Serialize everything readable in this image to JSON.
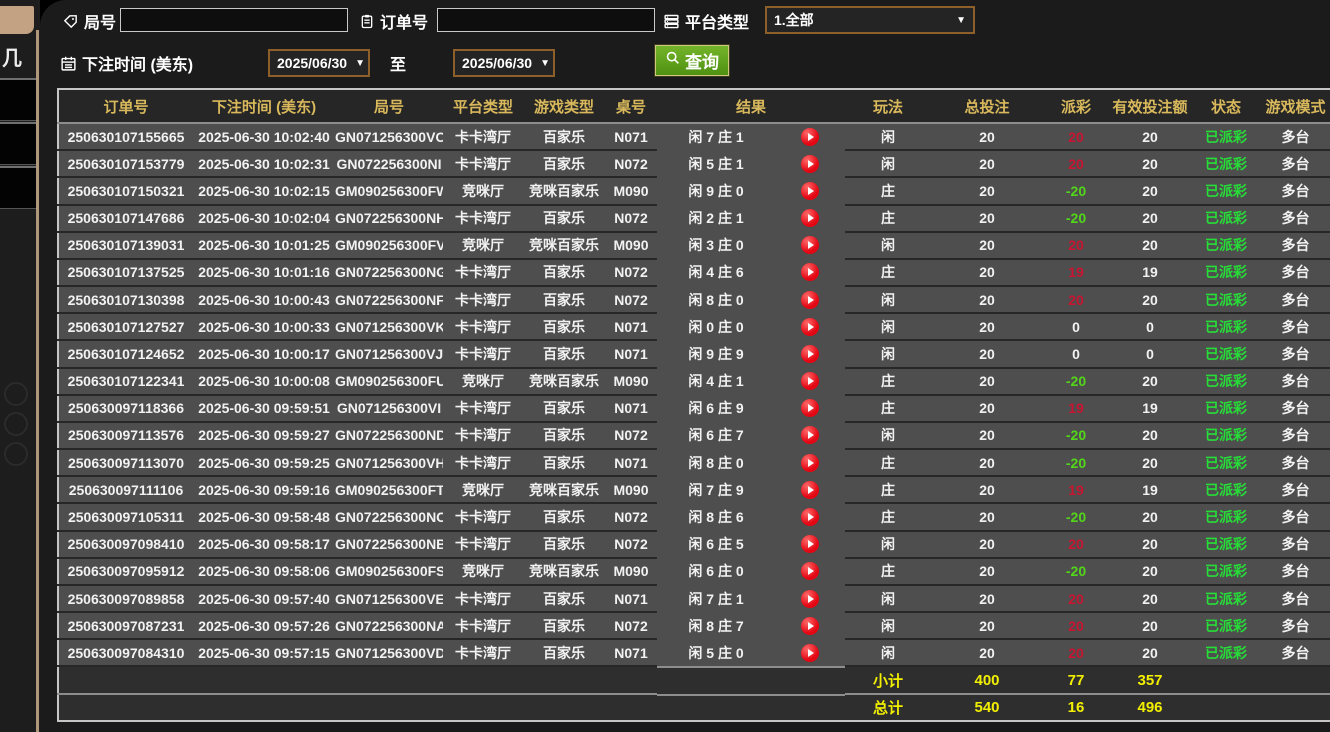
{
  "background": {
    "glyph": "几"
  },
  "filters": {
    "round_label": "局号",
    "order_label": "订单号",
    "platform_label": "平台类型",
    "platform_value": "1.全部",
    "bet_time_label": "下注时间 (美东)",
    "date_from": "2025/06/30",
    "to_label": "至",
    "date_to": "2025/06/30",
    "query_label": "查询",
    "round_input_value": "",
    "order_input_value": ""
  },
  "icons": {
    "tag-icon": "tag",
    "clipboard-icon": "clipboard",
    "platform-icon": "server-stack",
    "calendar-icon": "calendar",
    "search-icon": "magnifier",
    "dropdown-arrow-icon": "▼",
    "replay-icon": "play-circle"
  },
  "colors": {
    "header_gold": "#d9b95c",
    "row_gray": "#4e4e4e",
    "payout_positive_red": "#c81430",
    "payout_negative_green": "#52d619",
    "status_paid_green": "#27dd38",
    "summary_yellow": "#f2ef00",
    "query_button_green": "#63a81d",
    "select_border_brown": "#8f5f2a",
    "strip_tan": "#c2a283",
    "play_icon_red": "#e30613"
  },
  "table": {
    "headers": [
      "订单号",
      "下注时间 (美东)",
      "局号",
      "平台类型",
      "游戏类型",
      "桌号",
      "结果",
      "玩法",
      "总投注",
      "派彩",
      "有效投注额",
      "状态",
      "游戏模式"
    ],
    "rows": [
      {
        "order": "250630107155665",
        "time": "2025-06-30 10:02:40",
        "round": "GN071256300VO",
        "platform": "卡卡湾厅",
        "game_type": "百家乐",
        "table_no": "N071",
        "result": "闲 7 庄 1",
        "play": "闲",
        "total_bet": "20",
        "payout": "20",
        "valid_bet": "20",
        "status": "已派彩",
        "mode": "多台"
      },
      {
        "order": "250630107153779",
        "time": "2025-06-30 10:02:31",
        "round": "GN072256300NI",
        "platform": "卡卡湾厅",
        "game_type": "百家乐",
        "table_no": "N072",
        "result": "闲 5 庄 1",
        "play": "闲",
        "total_bet": "20",
        "payout": "20",
        "valid_bet": "20",
        "status": "已派彩",
        "mode": "多台"
      },
      {
        "order": "250630107150321",
        "time": "2025-06-30 10:02:15",
        "round": "GM090256300FW",
        "platform": "竞咪厅",
        "game_type": "竞咪百家乐",
        "table_no": "M090",
        "result": "闲 9 庄 0",
        "play": "庄",
        "total_bet": "20",
        "payout": "-20",
        "valid_bet": "20",
        "status": "已派彩",
        "mode": "多台"
      },
      {
        "order": "250630107147686",
        "time": "2025-06-30 10:02:04",
        "round": "GN072256300NH",
        "platform": "卡卡湾厅",
        "game_type": "百家乐",
        "table_no": "N072",
        "result": "闲 2 庄 1",
        "play": "庄",
        "total_bet": "20",
        "payout": "-20",
        "valid_bet": "20",
        "status": "已派彩",
        "mode": "多台"
      },
      {
        "order": "250630107139031",
        "time": "2025-06-30 10:01:25",
        "round": "GM090256300FV",
        "platform": "竞咪厅",
        "game_type": "竞咪百家乐",
        "table_no": "M090",
        "result": "闲 3 庄 0",
        "play": "闲",
        "total_bet": "20",
        "payout": "20",
        "valid_bet": "20",
        "status": "已派彩",
        "mode": "多台"
      },
      {
        "order": "250630107137525",
        "time": "2025-06-30 10:01:16",
        "round": "GN072256300NG",
        "platform": "卡卡湾厅",
        "game_type": "百家乐",
        "table_no": "N072",
        "result": "闲 4 庄 6",
        "play": "庄",
        "total_bet": "20",
        "payout": "19",
        "valid_bet": "19",
        "status": "已派彩",
        "mode": "多台"
      },
      {
        "order": "250630107130398",
        "time": "2025-06-30 10:00:43",
        "round": "GN072256300NF",
        "platform": "卡卡湾厅",
        "game_type": "百家乐",
        "table_no": "N072",
        "result": "闲 8 庄 0",
        "play": "闲",
        "total_bet": "20",
        "payout": "20",
        "valid_bet": "20",
        "status": "已派彩",
        "mode": "多台"
      },
      {
        "order": "250630107127527",
        "time": "2025-06-30 10:00:33",
        "round": "GN071256300VK",
        "platform": "卡卡湾厅",
        "game_type": "百家乐",
        "table_no": "N071",
        "result": "闲 0 庄 0",
        "play": "闲",
        "total_bet": "20",
        "payout": "0",
        "valid_bet": "0",
        "status": "已派彩",
        "mode": "多台"
      },
      {
        "order": "250630107124652",
        "time": "2025-06-30 10:00:17",
        "round": "GN071256300VJ",
        "platform": "卡卡湾厅",
        "game_type": "百家乐",
        "table_no": "N071",
        "result": "闲 9 庄 9",
        "play": "闲",
        "total_bet": "20",
        "payout": "0",
        "valid_bet": "0",
        "status": "已派彩",
        "mode": "多台"
      },
      {
        "order": "250630107122341",
        "time": "2025-06-30 10:00:08",
        "round": "GM090256300FU",
        "platform": "竞咪厅",
        "game_type": "竞咪百家乐",
        "table_no": "M090",
        "result": "闲 4 庄 1",
        "play": "庄",
        "total_bet": "20",
        "payout": "-20",
        "valid_bet": "20",
        "status": "已派彩",
        "mode": "多台"
      },
      {
        "order": "250630097118366",
        "time": "2025-06-30 09:59:51",
        "round": "GN071256300VI",
        "platform": "卡卡湾厅",
        "game_type": "百家乐",
        "table_no": "N071",
        "result": "闲 6 庄 9",
        "play": "庄",
        "total_bet": "20",
        "payout": "19",
        "valid_bet": "19",
        "status": "已派彩",
        "mode": "多台"
      },
      {
        "order": "250630097113576",
        "time": "2025-06-30 09:59:27",
        "round": "GN072256300ND",
        "platform": "卡卡湾厅",
        "game_type": "百家乐",
        "table_no": "N072",
        "result": "闲 6 庄 7",
        "play": "闲",
        "total_bet": "20",
        "payout": "-20",
        "valid_bet": "20",
        "status": "已派彩",
        "mode": "多台"
      },
      {
        "order": "250630097113070",
        "time": "2025-06-30 09:59:25",
        "round": "GN071256300VH",
        "platform": "卡卡湾厅",
        "game_type": "百家乐",
        "table_no": "N071",
        "result": "闲 8 庄 0",
        "play": "庄",
        "total_bet": "20",
        "payout": "-20",
        "valid_bet": "20",
        "status": "已派彩",
        "mode": "多台"
      },
      {
        "order": "250630097111106",
        "time": "2025-06-30 09:59:16",
        "round": "GM090256300FT",
        "platform": "竞咪厅",
        "game_type": "竞咪百家乐",
        "table_no": "M090",
        "result": "闲 7 庄 9",
        "play": "庄",
        "total_bet": "20",
        "payout": "19",
        "valid_bet": "19",
        "status": "已派彩",
        "mode": "多台"
      },
      {
        "order": "250630097105311",
        "time": "2025-06-30 09:58:48",
        "round": "GN072256300NC",
        "platform": "卡卡湾厅",
        "game_type": "百家乐",
        "table_no": "N072",
        "result": "闲 8 庄 6",
        "play": "庄",
        "total_bet": "20",
        "payout": "-20",
        "valid_bet": "20",
        "status": "已派彩",
        "mode": "多台"
      },
      {
        "order": "250630097098410",
        "time": "2025-06-30 09:58:17",
        "round": "GN072256300NB",
        "platform": "卡卡湾厅",
        "game_type": "百家乐",
        "table_no": "N072",
        "result": "闲 6 庄 5",
        "play": "闲",
        "total_bet": "20",
        "payout": "20",
        "valid_bet": "20",
        "status": "已派彩",
        "mode": "多台"
      },
      {
        "order": "250630097095912",
        "time": "2025-06-30 09:58:06",
        "round": "GM090256300FS",
        "platform": "竞咪厅",
        "game_type": "竞咪百家乐",
        "table_no": "M090",
        "result": "闲 6 庄 0",
        "play": "庄",
        "total_bet": "20",
        "payout": "-20",
        "valid_bet": "20",
        "status": "已派彩",
        "mode": "多台"
      },
      {
        "order": "250630097089858",
        "time": "2025-06-30 09:57:40",
        "round": "GN071256300VE",
        "platform": "卡卡湾厅",
        "game_type": "百家乐",
        "table_no": "N071",
        "result": "闲 7 庄 1",
        "play": "闲",
        "total_bet": "20",
        "payout": "20",
        "valid_bet": "20",
        "status": "已派彩",
        "mode": "多台"
      },
      {
        "order": "250630097087231",
        "time": "2025-06-30 09:57:26",
        "round": "GN072256300NA",
        "platform": "卡卡湾厅",
        "game_type": "百家乐",
        "table_no": "N072",
        "result": "闲 8 庄 7",
        "play": "闲",
        "total_bet": "20",
        "payout": "20",
        "valid_bet": "20",
        "status": "已派彩",
        "mode": "多台"
      },
      {
        "order": "250630097084310",
        "time": "2025-06-30 09:57:15",
        "round": "GN071256300VD",
        "platform": "卡卡湾厅",
        "game_type": "百家乐",
        "table_no": "N071",
        "result": "闲 5 庄 0",
        "play": "闲",
        "total_bet": "20",
        "payout": "20",
        "valid_bet": "20",
        "status": "已派彩",
        "mode": "多台"
      }
    ],
    "subtotal": {
      "label": "小计",
      "total_bet": "400",
      "payout": "77",
      "valid_bet": "357"
    },
    "grand_total": {
      "label": "总计",
      "total_bet": "540",
      "payout": "16",
      "valid_bet": "496"
    }
  }
}
